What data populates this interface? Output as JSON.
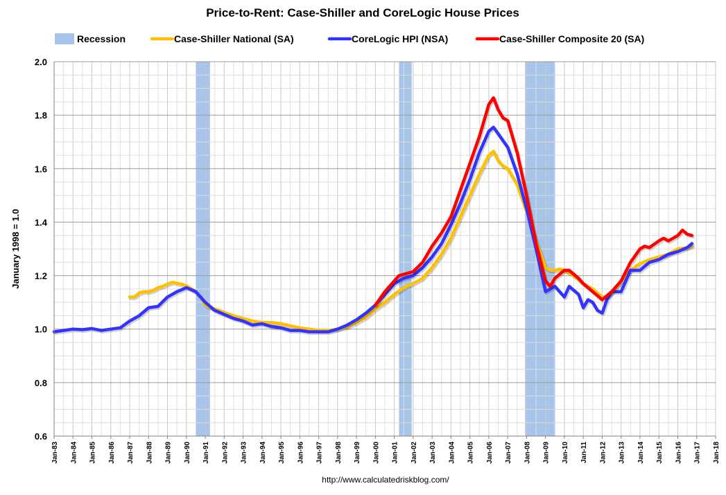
{
  "chart_data": {
    "type": "line",
    "title": "Price-to-Rent: Case-Shiller and CoreLogic House Prices",
    "ylabel": "January 1998 = 1.0",
    "xlabel": "",
    "ylim": [
      0.6,
      2.0
    ],
    "yticks": [
      "0.6",
      "0.8",
      "1.0",
      "1.2",
      "1.4",
      "1.6",
      "1.8",
      "2.0"
    ],
    "xlim": [
      1983.0,
      2018.0
    ],
    "xticks": [
      "Jan-83",
      "Jan-84",
      "Jan-85",
      "Jan-86",
      "Jan-87",
      "Jan-88",
      "Jan-89",
      "Jan-90",
      "Jan-91",
      "Jan-92",
      "Jan-93",
      "Jan-94",
      "Jan-95",
      "Jan-96",
      "Jan-97",
      "Jan-98",
      "Jan-99",
      "Jan-00",
      "Jan-01",
      "Jan-02",
      "Jan-03",
      "Jan-04",
      "Jan-05",
      "Jan-06",
      "Jan-07",
      "Jan-08",
      "Jan-09",
      "Jan-10",
      "Jan-11",
      "Jan-12",
      "Jan-13",
      "Jan-14",
      "Jan-15",
      "Jan-16",
      "Jan-17",
      "Jan-18"
    ],
    "grid": true,
    "legend_position": "top",
    "source": "http://www.calculatedriskblog.com/",
    "recession": {
      "name": "Recession",
      "color": "#a9c4eb",
      "periods": [
        [
          1990.5,
          1991.25
        ],
        [
          2001.25,
          2001.92
        ],
        [
          2007.92,
          2009.5
        ]
      ]
    },
    "series": [
      {
        "name": "Case-Shiller National (SA)",
        "color": "#ffc000",
        "points": [
          [
            1987.0,
            1.12
          ],
          [
            1987.25,
            1.12
          ],
          [
            1987.5,
            1.135
          ],
          [
            1987.75,
            1.14
          ],
          [
            1988.0,
            1.14
          ],
          [
            1988.25,
            1.145
          ],
          [
            1988.5,
            1.155
          ],
          [
            1988.75,
            1.16
          ],
          [
            1989.0,
            1.168
          ],
          [
            1989.25,
            1.175
          ],
          [
            1989.5,
            1.172
          ],
          [
            1989.75,
            1.168
          ],
          [
            1990.0,
            1.162
          ],
          [
            1990.25,
            1.152
          ],
          [
            1990.5,
            1.14
          ],
          [
            1990.75,
            1.12
          ],
          [
            1991.0,
            1.09
          ],
          [
            1991.25,
            1.08
          ],
          [
            1991.5,
            1.075
          ],
          [
            1991.75,
            1.07
          ],
          [
            1992.0,
            1.062
          ],
          [
            1992.5,
            1.05
          ],
          [
            1993.0,
            1.04
          ],
          [
            1993.5,
            1.03
          ],
          [
            1994.0,
            1.025
          ],
          [
            1994.5,
            1.025
          ],
          [
            1995.0,
            1.02
          ],
          [
            1995.5,
            1.012
          ],
          [
            1996.0,
            1.005
          ],
          [
            1996.5,
            1.0
          ],
          [
            1997.0,
            0.995
          ],
          [
            1997.5,
            0.995
          ],
          [
            1998.0,
            1.0
          ],
          [
            1998.5,
            1.008
          ],
          [
            1999.0,
            1.025
          ],
          [
            1999.5,
            1.045
          ],
          [
            2000.0,
            1.075
          ],
          [
            2000.5,
            1.1
          ],
          [
            2001.0,
            1.13
          ],
          [
            2001.5,
            1.155
          ],
          [
            2002.0,
            1.17
          ],
          [
            2002.5,
            1.19
          ],
          [
            2003.0,
            1.23
          ],
          [
            2003.5,
            1.28
          ],
          [
            2004.0,
            1.34
          ],
          [
            2004.5,
            1.42
          ],
          [
            2005.0,
            1.5
          ],
          [
            2005.5,
            1.58
          ],
          [
            2006.0,
            1.65
          ],
          [
            2006.25,
            1.665
          ],
          [
            2006.5,
            1.63
          ],
          [
            2006.75,
            1.61
          ],
          [
            2007.0,
            1.6
          ],
          [
            2007.5,
            1.54
          ],
          [
            2008.0,
            1.44
          ],
          [
            2008.5,
            1.33
          ],
          [
            2009.0,
            1.23
          ],
          [
            2009.25,
            1.22
          ],
          [
            2009.5,
            1.22
          ],
          [
            2009.75,
            1.225
          ],
          [
            2010.0,
            1.22
          ],
          [
            2010.5,
            1.2
          ],
          [
            2011.0,
            1.17
          ],
          [
            2011.5,
            1.15
          ],
          [
            2012.0,
            1.12
          ],
          [
            2012.25,
            1.12
          ],
          [
            2012.5,
            1.135
          ],
          [
            2013.0,
            1.18
          ],
          [
            2013.5,
            1.22
          ],
          [
            2014.0,
            1.245
          ],
          [
            2014.5,
            1.26
          ],
          [
            2015.0,
            1.27
          ],
          [
            2015.5,
            1.28
          ],
          [
            2016.0,
            1.3
          ],
          [
            2016.5,
            1.305
          ],
          [
            2016.75,
            1.31
          ]
        ]
      },
      {
        "name": "CoreLogic HPI (NSA)",
        "color": "#3333ff",
        "points": [
          [
            1983.0,
            0.99
          ],
          [
            1983.5,
            0.995
          ],
          [
            1984.0,
            1.0
          ],
          [
            1984.5,
            0.998
          ],
          [
            1985.0,
            1.002
          ],
          [
            1985.5,
            0.995
          ],
          [
            1986.0,
            1.0
          ],
          [
            1986.5,
            1.005
          ],
          [
            1987.0,
            1.03
          ],
          [
            1987.5,
            1.05
          ],
          [
            1988.0,
            1.08
          ],
          [
            1988.5,
            1.085
          ],
          [
            1989.0,
            1.12
          ],
          [
            1989.5,
            1.14
          ],
          [
            1990.0,
            1.155
          ],
          [
            1990.5,
            1.14
          ],
          [
            1991.0,
            1.1
          ],
          [
            1991.5,
            1.07
          ],
          [
            1992.0,
            1.055
          ],
          [
            1992.5,
            1.04
          ],
          [
            1993.0,
            1.03
          ],
          [
            1993.5,
            1.015
          ],
          [
            1994.0,
            1.02
          ],
          [
            1994.5,
            1.01
          ],
          [
            1995.0,
            1.005
          ],
          [
            1995.5,
            0.995
          ],
          [
            1996.0,
            0.995
          ],
          [
            1996.5,
            0.99
          ],
          [
            1997.0,
            0.99
          ],
          [
            1997.5,
            0.99
          ],
          [
            1998.0,
            1.0
          ],
          [
            1998.5,
            1.015
          ],
          [
            1999.0,
            1.035
          ],
          [
            1999.5,
            1.06
          ],
          [
            2000.0,
            1.09
          ],
          [
            2000.5,
            1.13
          ],
          [
            2001.0,
            1.17
          ],
          [
            2001.5,
            1.19
          ],
          [
            2002.0,
            1.2
          ],
          [
            2002.5,
            1.23
          ],
          [
            2003.0,
            1.27
          ],
          [
            2003.5,
            1.32
          ],
          [
            2004.0,
            1.39
          ],
          [
            2004.5,
            1.47
          ],
          [
            2005.0,
            1.56
          ],
          [
            2005.5,
            1.66
          ],
          [
            2006.0,
            1.74
          ],
          [
            2006.25,
            1.755
          ],
          [
            2006.5,
            1.73
          ],
          [
            2007.0,
            1.68
          ],
          [
            2007.5,
            1.58
          ],
          [
            2008.0,
            1.45
          ],
          [
            2008.5,
            1.3
          ],
          [
            2009.0,
            1.14
          ],
          [
            2009.5,
            1.16
          ],
          [
            2010.0,
            1.12
          ],
          [
            2010.25,
            1.16
          ],
          [
            2010.75,
            1.13
          ],
          [
            2011.0,
            1.08
          ],
          [
            2011.25,
            1.11
          ],
          [
            2011.5,
            1.1
          ],
          [
            2011.75,
            1.07
          ],
          [
            2012.0,
            1.06
          ],
          [
            2012.25,
            1.11
          ],
          [
            2012.5,
            1.14
          ],
          [
            2013.0,
            1.14
          ],
          [
            2013.5,
            1.22
          ],
          [
            2014.0,
            1.22
          ],
          [
            2014.5,
            1.25
          ],
          [
            2015.0,
            1.26
          ],
          [
            2015.5,
            1.28
          ],
          [
            2016.0,
            1.29
          ],
          [
            2016.5,
            1.305
          ],
          [
            2016.75,
            1.32
          ]
        ]
      },
      {
        "name": "Case-Shiller Composite 20 (SA)",
        "color": "#ff0000",
        "points": [
          [
            2000.0,
            1.09
          ],
          [
            2000.5,
            1.14
          ],
          [
            2001.0,
            1.18
          ],
          [
            2001.25,
            1.2
          ],
          [
            2001.5,
            1.205
          ],
          [
            2002.0,
            1.215
          ],
          [
            2002.5,
            1.25
          ],
          [
            2003.0,
            1.31
          ],
          [
            2003.5,
            1.36
          ],
          [
            2004.0,
            1.42
          ],
          [
            2004.5,
            1.52
          ],
          [
            2005.0,
            1.62
          ],
          [
            2005.5,
            1.72
          ],
          [
            2006.0,
            1.84
          ],
          [
            2006.25,
            1.865
          ],
          [
            2006.5,
            1.82
          ],
          [
            2006.75,
            1.79
          ],
          [
            2007.0,
            1.78
          ],
          [
            2007.5,
            1.66
          ],
          [
            2008.0,
            1.5
          ],
          [
            2008.5,
            1.32
          ],
          [
            2009.0,
            1.18
          ],
          [
            2009.25,
            1.16
          ],
          [
            2009.5,
            1.19
          ],
          [
            2010.0,
            1.22
          ],
          [
            2010.25,
            1.22
          ],
          [
            2010.75,
            1.19
          ],
          [
            2011.0,
            1.17
          ],
          [
            2011.5,
            1.14
          ],
          [
            2012.0,
            1.11
          ],
          [
            2012.5,
            1.14
          ],
          [
            2013.0,
            1.18
          ],
          [
            2013.5,
            1.25
          ],
          [
            2014.0,
            1.3
          ],
          [
            2014.25,
            1.31
          ],
          [
            2014.5,
            1.305
          ],
          [
            2015.0,
            1.33
          ],
          [
            2015.25,
            1.34
          ],
          [
            2015.5,
            1.33
          ],
          [
            2016.0,
            1.35
          ],
          [
            2016.25,
            1.37
          ],
          [
            2016.5,
            1.355
          ],
          [
            2016.75,
            1.35
          ]
        ]
      }
    ]
  }
}
